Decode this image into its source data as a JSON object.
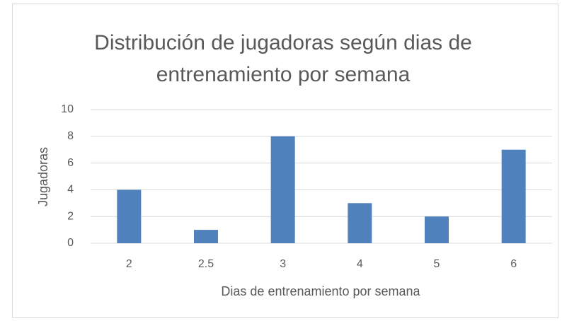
{
  "chart_data": {
    "type": "bar",
    "title": "Distribución de jugadoras según dias de entrenamiento por semana",
    "x_label": "Dias de entrenamiento por semana",
    "y_label": "Jugadoras",
    "categories": [
      "2",
      "2.5",
      "3",
      "4",
      "5",
      "6"
    ],
    "values": [
      4,
      1,
      8,
      3,
      2,
      7
    ],
    "color": "#4f81bd",
    "ylim": [
      0,
      10
    ],
    "yticks": [
      0,
      2,
      4,
      6,
      8,
      10
    ],
    "grid": true
  }
}
